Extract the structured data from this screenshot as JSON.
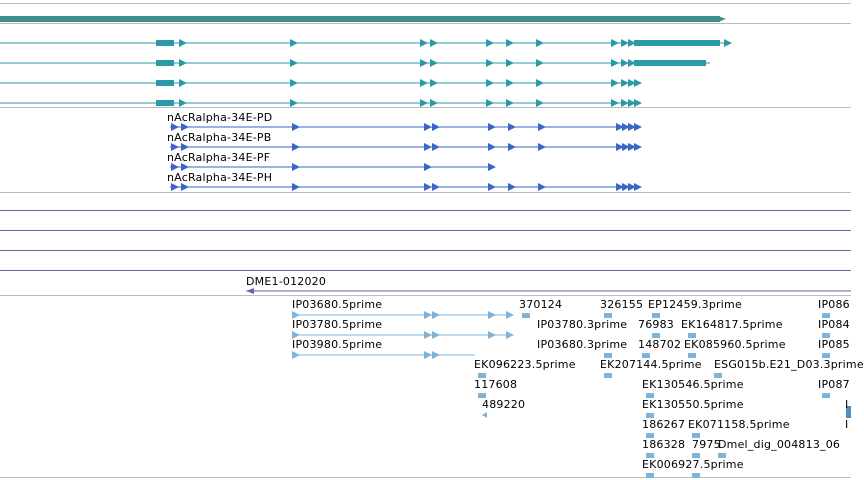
{
  "colors": {
    "mrna_thick": "#2a9aa6",
    "mrna_top": "#3f8f8c",
    "protein": "#3a66c8",
    "est": "#7fb3da",
    "est_dark": "#4a90c8",
    "separator": "#bbbbbb",
    "purple_line": "#7a5f93",
    "primer": "#6a5fb0"
  },
  "tracks": {
    "gene": {
      "name": "gene-span-bar"
    },
    "transcripts": {
      "count": 4
    },
    "proteins": {
      "labels": [
        "nAcRalpha-34E-PD",
        "nAcRalpha-34E-PB",
        "nAcRalpha-34E-PF",
        "nAcRalpha-34E-PH"
      ]
    },
    "primer": {
      "label": "DME1-012020"
    },
    "ests": {
      "labels": [
        "IP03680.5prime",
        "370124",
        "326155",
        "EP12459.3prime",
        "IP086",
        "IP03780.5prime",
        "IP03780.3prime",
        "76983",
        "EK164817.5prime",
        "IP084",
        "IP03980.5prime",
        "IP03680.3prime",
        "148702",
        "EK085960.5prime",
        "IP085",
        "EK096223.5prime",
        "EK207144.5prime",
        "ESG015b.E21_D03.3prime",
        "117608",
        "EK130546.5prime",
        "IP087",
        "489220",
        "EK130550.5prime",
        "I",
        "186267",
        "EK071158.5prime",
        "I",
        "186328",
        "7975",
        "Dmel_dig_004813_06",
        "EK006927.5prime"
      ]
    }
  }
}
